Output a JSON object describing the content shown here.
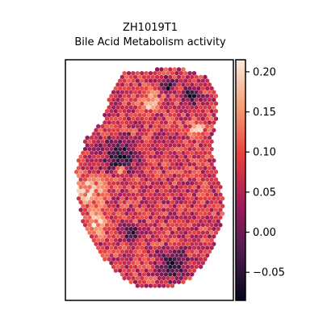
{
  "chart_data": {
    "type": "heatmap",
    "title": "ZH1019T1",
    "subtitle": "Bile Acid Metabolism activity",
    "xlabel": "",
    "ylabel": "",
    "grid": false,
    "colormap": {
      "name": "rocket",
      "vmin": -0.085,
      "vmax": 0.215,
      "stops": [
        "#03051a",
        "#4c1d4b",
        "#a11a5b",
        "#e83f3f",
        "#f69c73",
        "#faebdd"
      ]
    },
    "colorbar": {
      "ticks": [
        -0.05,
        0.0,
        0.05,
        0.1,
        0.15,
        0.2
      ],
      "tick_labels": [
        "−0.05",
        "0.00",
        "0.05",
        "0.10",
        "0.15",
        "0.20"
      ]
    },
    "spots": {
      "description_of_values": "per-spot activity score on hexagonal spatial grid",
      "value_range": [
        -0.085,
        0.215
      ]
    }
  }
}
